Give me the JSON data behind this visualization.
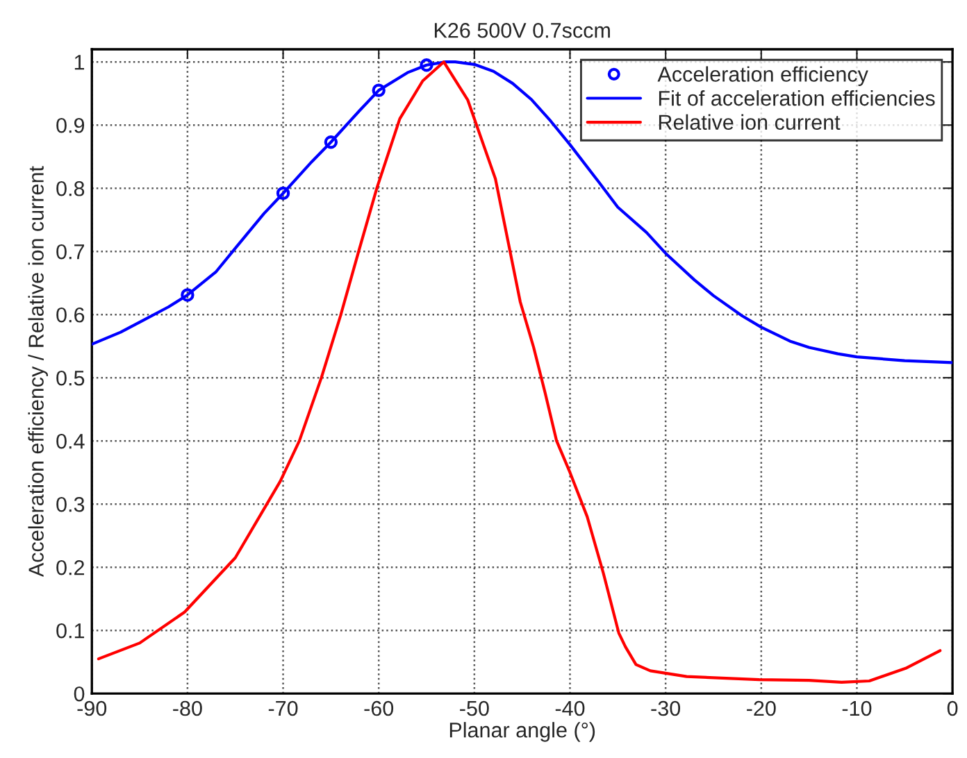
{
  "chart_data": {
    "type": "line",
    "title": "K26 500V 0.7sccm",
    "xlabel": "Planar angle (°)",
    "ylabel": "Acceleration efficiency / Relative ion current",
    "xlim": [
      -90,
      0
    ],
    "xticks": [
      -90,
      -80,
      -70,
      -60,
      -50,
      -40,
      -30,
      -20,
      -10,
      0
    ],
    "ylim": [
      0,
      1.02
    ],
    "yticks": [
      0,
      0.1,
      0.2,
      0.3,
      0.4,
      0.5,
      0.6,
      0.7,
      0.8,
      0.9,
      1
    ],
    "grid": true,
    "legend": "top right",
    "series": [
      {
        "name": "Acceleration efficiency",
        "type": "scatter",
        "marker": "circle",
        "color": "#0000ff",
        "x": [
          -80,
          -70,
          -65,
          -60,
          -55
        ],
        "values": [
          0.631,
          0.792,
          0.873,
          0.955,
          0.995
        ]
      },
      {
        "name": "Fit of acceleration efficiencies",
        "color": "#0000ff",
        "x": [
          -90,
          -87,
          -85,
          -82,
          -80,
          -77,
          -75,
          -72,
          -70,
          -67,
          -65,
          -62,
          -60,
          -57,
          -55,
          -53,
          -52,
          -50,
          -48,
          -46,
          -44,
          -42,
          -40,
          -37,
          -35,
          -32,
          -30,
          -27,
          -25,
          -22,
          -20,
          -17,
          -15,
          -12,
          -10,
          -5,
          0
        ],
        "values": [
          0.553,
          0.572,
          0.588,
          0.612,
          0.631,
          0.668,
          0.705,
          0.76,
          0.792,
          0.842,
          0.873,
          0.923,
          0.955,
          0.983,
          0.995,
          1.0,
          1.0,
          0.996,
          0.985,
          0.966,
          0.94,
          0.906,
          0.869,
          0.81,
          0.77,
          0.73,
          0.697,
          0.655,
          0.63,
          0.598,
          0.58,
          0.558,
          0.548,
          0.538,
          0.533,
          0.527,
          0.524
        ]
      },
      {
        "name": "Relative ion current",
        "color": "#ff0000",
        "x": [
          -89.3,
          -85,
          -80.3,
          -75,
          -70.3,
          -68.3,
          -66,
          -64,
          -62.1,
          -60.2,
          -57.8,
          -55.4,
          -53.2,
          -50.7,
          -47.8,
          -45.2,
          -43.8,
          -42.6,
          -41.4,
          -40,
          -38.2,
          -36.5,
          -34.9,
          -34.2,
          -33.1,
          -31.6,
          -27.8,
          -20.2,
          -15,
          -11.6,
          -8.7,
          -4.9,
          -1.3
        ],
        "values": [
          0.055,
          0.08,
          0.129,
          0.215,
          0.336,
          0.4,
          0.5,
          0.598,
          0.7,
          0.8,
          0.91,
          0.97,
          1.0,
          0.94,
          0.815,
          0.62,
          0.548,
          0.476,
          0.4,
          0.35,
          0.28,
          0.19,
          0.096,
          0.074,
          0.046,
          0.036,
          0.027,
          0.022,
          0.021,
          0.018,
          0.02,
          0.04,
          0.068
        ]
      }
    ]
  }
}
